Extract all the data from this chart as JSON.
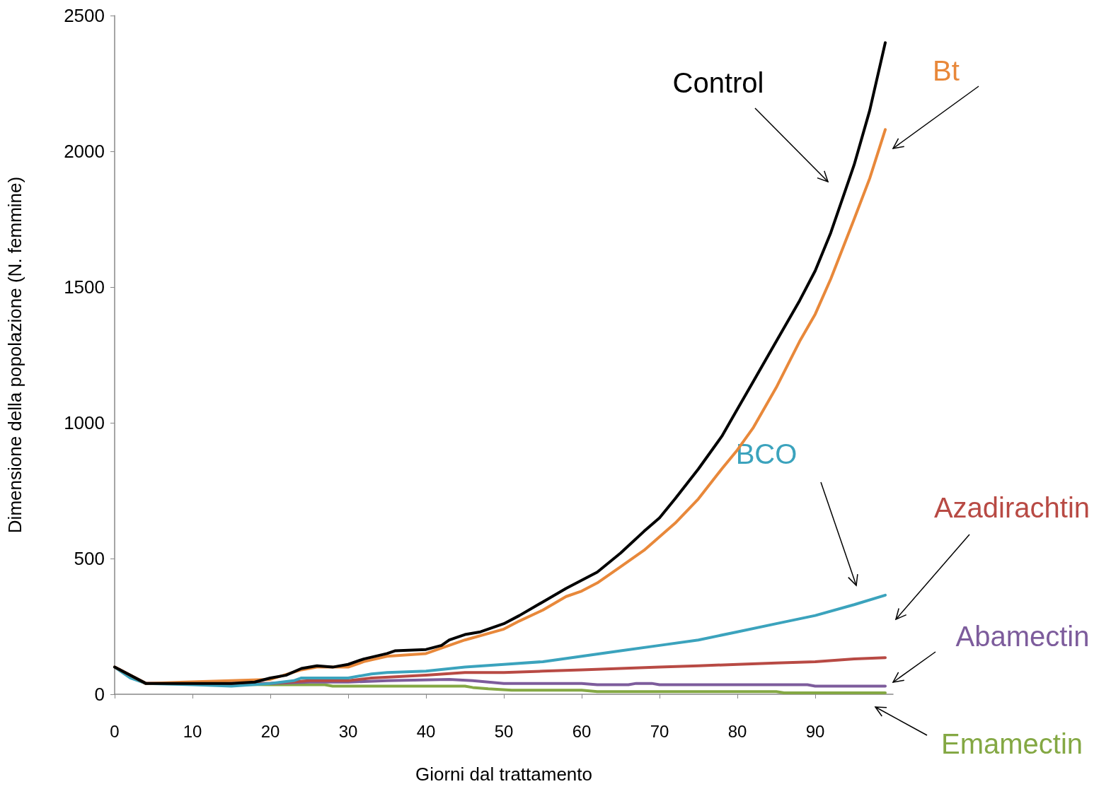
{
  "chart_data": {
    "type": "line",
    "xlabel": "Giorni dal trattamento",
    "ylabel": "Dimensione della popolazione (N. femmine)",
    "xlim": [
      0,
      100
    ],
    "xticks": [
      0,
      10,
      20,
      30,
      40,
      50,
      60,
      70,
      80,
      90
    ],
    "ylim": [
      0,
      2500
    ],
    "yticks": [
      0,
      500,
      1000,
      1500,
      2000,
      2500
    ],
    "grid": false,
    "legend": false,
    "marker": "none",
    "line_style": "solid",
    "series": [
      {
        "name": "Control",
        "color": "#000000",
        "x": [
          0,
          4,
          10,
          15,
          18,
          20,
          22,
          24,
          26,
          28,
          30,
          32,
          35,
          36,
          40,
          42,
          43,
          45,
          47,
          50,
          52,
          55,
          58,
          60,
          62,
          65,
          68,
          70,
          72,
          75,
          78,
          80,
          82,
          85,
          88,
          90,
          92,
          95,
          97,
          99
        ],
        "values": [
          100,
          40,
          40,
          40,
          45,
          60,
          70,
          95,
          105,
          100,
          110,
          130,
          150,
          160,
          165,
          180,
          200,
          220,
          230,
          260,
          290,
          340,
          390,
          420,
          450,
          520,
          600,
          650,
          720,
          830,
          950,
          1050,
          1150,
          1300,
          1450,
          1560,
          1700,
          1950,
          2150,
          2400
        ]
      },
      {
        "name": "Bt",
        "color": "#e8883a",
        "x": [
          0,
          4,
          20,
          24,
          26,
          30,
          32,
          35,
          40,
          42,
          45,
          50,
          52,
          55,
          58,
          60,
          62,
          65,
          68,
          70,
          72,
          75,
          78,
          80,
          82,
          85,
          88,
          90,
          92,
          95,
          97,
          99
        ],
        "values": [
          100,
          40,
          55,
          90,
          100,
          100,
          120,
          140,
          150,
          170,
          200,
          240,
          270,
          310,
          360,
          380,
          410,
          470,
          530,
          580,
          630,
          720,
          830,
          900,
          980,
          1130,
          1300,
          1400,
          1530,
          1750,
          1900,
          2080
        ]
      },
      {
        "name": "BCO",
        "color": "#3ba3bd",
        "x": [
          0,
          2,
          4,
          10,
          15,
          20,
          23,
          24,
          30,
          33,
          35,
          40,
          45,
          50,
          55,
          60,
          65,
          70,
          75,
          80,
          85,
          90,
          95,
          99
        ],
        "values": [
          100,
          60,
          40,
          35,
          30,
          40,
          50,
          60,
          60,
          75,
          80,
          85,
          100,
          110,
          120,
          140,
          160,
          180,
          200,
          230,
          260,
          290,
          330,
          365
        ]
      },
      {
        "name": "Azadirachtin",
        "color": "#b84a44",
        "x": [
          0,
          4,
          20,
          25,
          30,
          33,
          40,
          45,
          50,
          55,
          60,
          65,
          70,
          75,
          80,
          85,
          90,
          95,
          99
        ],
        "values": [
          100,
          40,
          40,
          50,
          50,
          60,
          70,
          80,
          80,
          85,
          90,
          95,
          100,
          105,
          110,
          115,
          120,
          130,
          135
        ]
      },
      {
        "name": "Abamectin",
        "color": "#7d5c9c",
        "x": [
          0,
          4,
          20,
          25,
          30,
          35,
          43,
          46,
          50,
          60,
          62,
          66,
          67,
          69,
          70,
          89,
          90,
          99
        ],
        "values": [
          100,
          40,
          40,
          45,
          45,
          50,
          55,
          50,
          40,
          40,
          35,
          35,
          40,
          40,
          35,
          35,
          30,
          30
        ]
      },
      {
        "name": "Emamectin",
        "color": "#84a844",
        "x": [
          0,
          4,
          20,
          27,
          28,
          45,
          46,
          48,
          51,
          60,
          62,
          85,
          86,
          99
        ],
        "values": [
          100,
          40,
          35,
          35,
          30,
          30,
          25,
          20,
          15,
          15,
          10,
          10,
          5,
          5
        ]
      }
    ]
  }
}
